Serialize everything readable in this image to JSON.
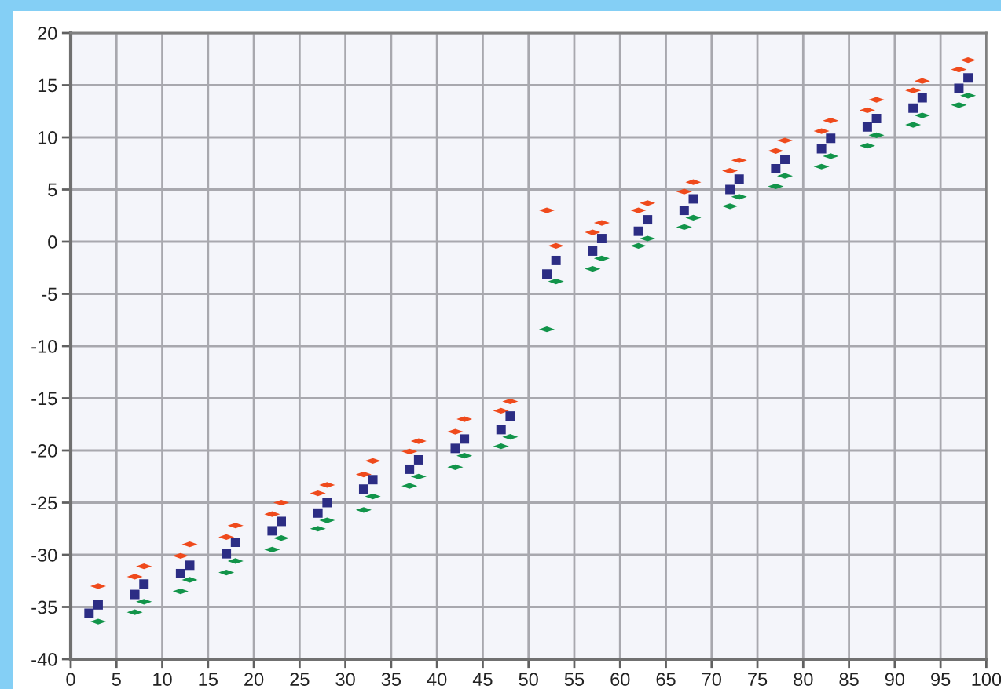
{
  "chart_data": {
    "type": "scatter",
    "xlim": [
      0,
      100
    ],
    "ylim": [
      -40,
      20
    ],
    "xticks": [
      0,
      5,
      10,
      15,
      20,
      25,
      30,
      35,
      40,
      45,
      50,
      55,
      60,
      65,
      70,
      75,
      80,
      85,
      90,
      95,
      100
    ],
    "yticks": [
      -40,
      -35,
      -30,
      -25,
      -20,
      -15,
      -10,
      -5,
      0,
      5,
      10,
      15,
      20
    ],
    "grid": true,
    "series": [
      {
        "color": "#ef4a1c",
        "marker": "diamond",
        "x": [
          3,
          7,
          8,
          12,
          13,
          17,
          18,
          22,
          23,
          27,
          28,
          32,
          33,
          37,
          38,
          42,
          43,
          47,
          48,
          52,
          53,
          57,
          58,
          62,
          63,
          67,
          68,
          72,
          73,
          77,
          78,
          82,
          83,
          87,
          88,
          92,
          93,
          97,
          98
        ],
        "values": [
          -33.0,
          -32.1,
          -31.1,
          -30.1,
          -29.0,
          -28.3,
          -27.2,
          -26.1,
          -25.0,
          -24.1,
          -23.3,
          -22.3,
          -21.0,
          -20.1,
          -19.1,
          -18.2,
          -17.0,
          -16.2,
          -15.3,
          3.0,
          -0.4,
          0.9,
          1.8,
          3.0,
          3.7,
          4.8,
          5.7,
          6.8,
          7.8,
          8.7,
          9.7,
          10.6,
          11.6,
          12.6,
          13.6,
          14.5,
          15.4,
          16.5,
          17.4
        ]
      },
      {
        "color": "#2c2d84",
        "marker": "square",
        "x": [
          2,
          3,
          7,
          8,
          12,
          13,
          17,
          18,
          22,
          23,
          27,
          28,
          32,
          33,
          37,
          38,
          42,
          43,
          47,
          48,
          52,
          53,
          57,
          58,
          62,
          63,
          67,
          68,
          72,
          73,
          77,
          78,
          82,
          83,
          87,
          88,
          92,
          93,
          97,
          98
        ],
        "values": [
          -35.6,
          -34.8,
          -33.8,
          -32.8,
          -31.8,
          -31.0,
          -29.9,
          -28.8,
          -27.7,
          -26.8,
          -26.0,
          -25.0,
          -23.7,
          -22.8,
          -21.8,
          -20.9,
          -19.8,
          -18.9,
          -18.0,
          -16.7,
          -3.1,
          -1.8,
          -0.9,
          0.3,
          1.0,
          2.1,
          3.0,
          4.1,
          5.0,
          6.0,
          7.0,
          7.9,
          8.9,
          9.9,
          11.0,
          11.8,
          12.8,
          13.8,
          14.7,
          15.7
        ]
      },
      {
        "color": "#12944a",
        "marker": "diamond",
        "x": [
          3,
          7,
          8,
          12,
          13,
          17,
          18,
          22,
          23,
          27,
          28,
          32,
          33,
          37,
          38,
          42,
          43,
          47,
          48,
          52,
          53,
          57,
          58,
          62,
          63,
          67,
          68,
          72,
          73,
          77,
          78,
          82,
          83,
          87,
          88,
          92,
          93,
          97,
          98
        ],
        "values": [
          -36.4,
          -35.5,
          -34.5,
          -33.5,
          -32.4,
          -31.7,
          -30.6,
          -29.5,
          -28.4,
          -27.5,
          -26.7,
          -25.7,
          -24.4,
          -23.4,
          -22.5,
          -21.6,
          -20.5,
          -19.6,
          -18.7,
          -8.4,
          -3.8,
          -2.6,
          -1.6,
          -0.4,
          0.3,
          1.4,
          2.3,
          3.4,
          4.3,
          5.3,
          6.3,
          7.2,
          8.2,
          9.2,
          10.2,
          11.2,
          12.1,
          13.1,
          14.0
        ]
      }
    ]
  }
}
